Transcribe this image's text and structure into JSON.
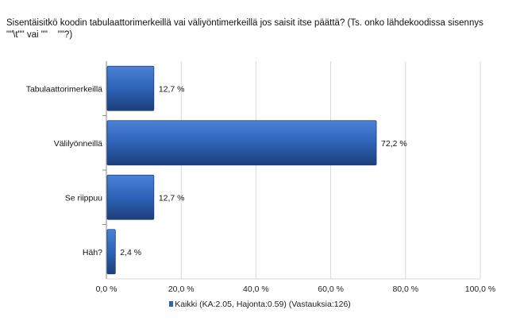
{
  "chart_data": {
    "type": "bar",
    "orientation": "horizontal",
    "title_lines": [
      "Sisentäisitkö koodin tabulaattorimerkeillä vai väliyöntimerkeillä jos saisit itse päättä? (Ts. onko lähdekoodissa sisennys",
      "\"\"\\t\"\" vai \"\"    \"\"?)"
    ],
    "categories": [
      "Tabulaattorimerkeillä",
      "Välilyönneillä",
      "Se riippuu",
      "Häh?"
    ],
    "series": [
      {
        "name": "Kaikki (KA:2.05, Hajonta:0.59) (Vastauksia:126)",
        "values": [
          12.7,
          72.2,
          12.7,
          2.4
        ],
        "labels": [
          "12,7 %",
          "72,2 %",
          "12,7 %",
          "2,4 %"
        ]
      }
    ],
    "xlim": [
      0,
      100
    ],
    "xticks": [
      0,
      20,
      40,
      60,
      80,
      100
    ],
    "xtick_labels": [
      "0,0 %",
      "20,0 %",
      "40,0 %",
      "60,0 %",
      "80,0 %",
      "100,0 %"
    ],
    "grid": "vertical",
    "legend_position": "bottom",
    "colors": {
      "bar": "#2e63b8",
      "bar_dark": "#1c3f7a",
      "grid": "#d9d9d9",
      "axis": "#888888"
    }
  }
}
